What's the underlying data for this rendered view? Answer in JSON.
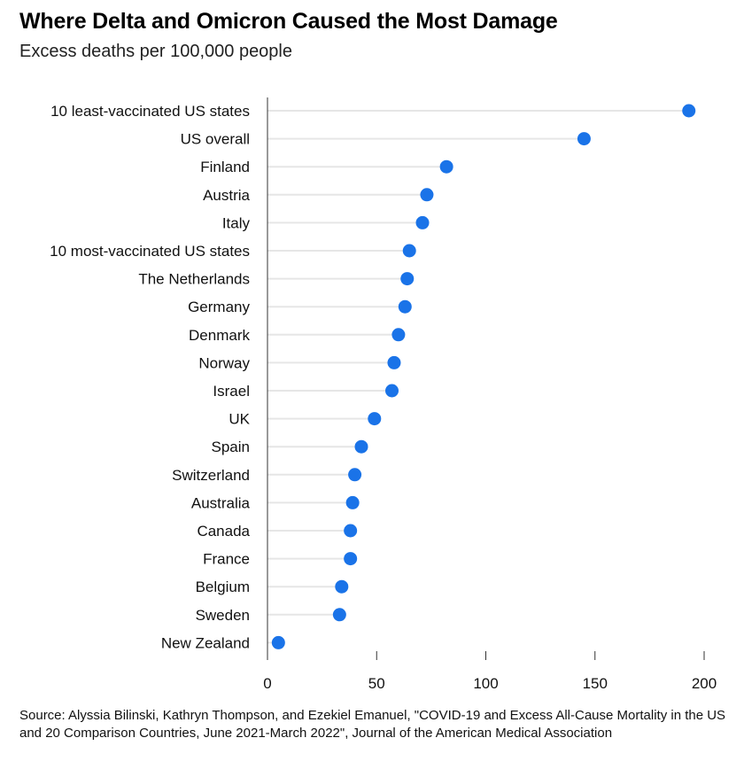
{
  "chart_data": {
    "type": "scatter",
    "title": "Where Delta and Omicron Caused the Most Damage",
    "subtitle": "Excess deaths per 100,000 people",
    "categories": [
      "10 least-vaccinated US states",
      "US overall",
      "Finland",
      "Austria",
      "Italy",
      "10 most-vaccinated US states",
      "The Netherlands",
      "Germany",
      "Denmark",
      "Norway",
      "Israel",
      "UK",
      "Spain",
      "Switzerland",
      "Australia",
      "Canada",
      "France",
      "Belgium",
      "Sweden",
      "New Zealand"
    ],
    "values": [
      193,
      145,
      82,
      73,
      71,
      65,
      64,
      63,
      60,
      58,
      57,
      49,
      43,
      40,
      39,
      38,
      38,
      34,
      33,
      5
    ],
    "xlim": [
      0,
      200
    ],
    "xticks": [
      0,
      50,
      100,
      150,
      200
    ],
    "xlabel": "",
    "ylabel": "",
    "grid": false,
    "marker_color": "#1a73e8",
    "stem_color": "#e6e6e6",
    "axis_color": "#333333"
  },
  "source": "Source: Alyssia Bilinski, Kathryn Thompson, and Ezekiel Emanuel, \"COVID-19 and Excess All-Cause Mortality in the US and 20 Comparison Countries, June 2021-March 2022\", Journal of the American Medical Association"
}
